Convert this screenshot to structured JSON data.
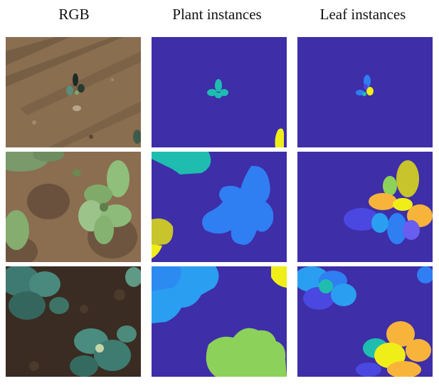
{
  "column_headers": [
    "RGB",
    "Plant instances",
    "Leaf instances"
  ],
  "grid": {
    "rows": 3,
    "columns": 3,
    "row_contents": [
      "young cabbage seedling on bare soil",
      "medium cabbage plants on soil",
      "mature cabbage plants on dark soil"
    ],
    "column_types": [
      "photo",
      "plant-instance-mask",
      "leaf-instance-mask"
    ]
  },
  "colors": {
    "mask_background": "#3e2ea8",
    "teal": "#1fbcb0",
    "blue": "#2f7ef2",
    "light_blue": "#2a9ef0",
    "yellow": "#f0ee18",
    "olive": "#c8c42c",
    "green": "#8cd15a",
    "orange": "#f8b43a",
    "violet": "#4a48e0"
  }
}
